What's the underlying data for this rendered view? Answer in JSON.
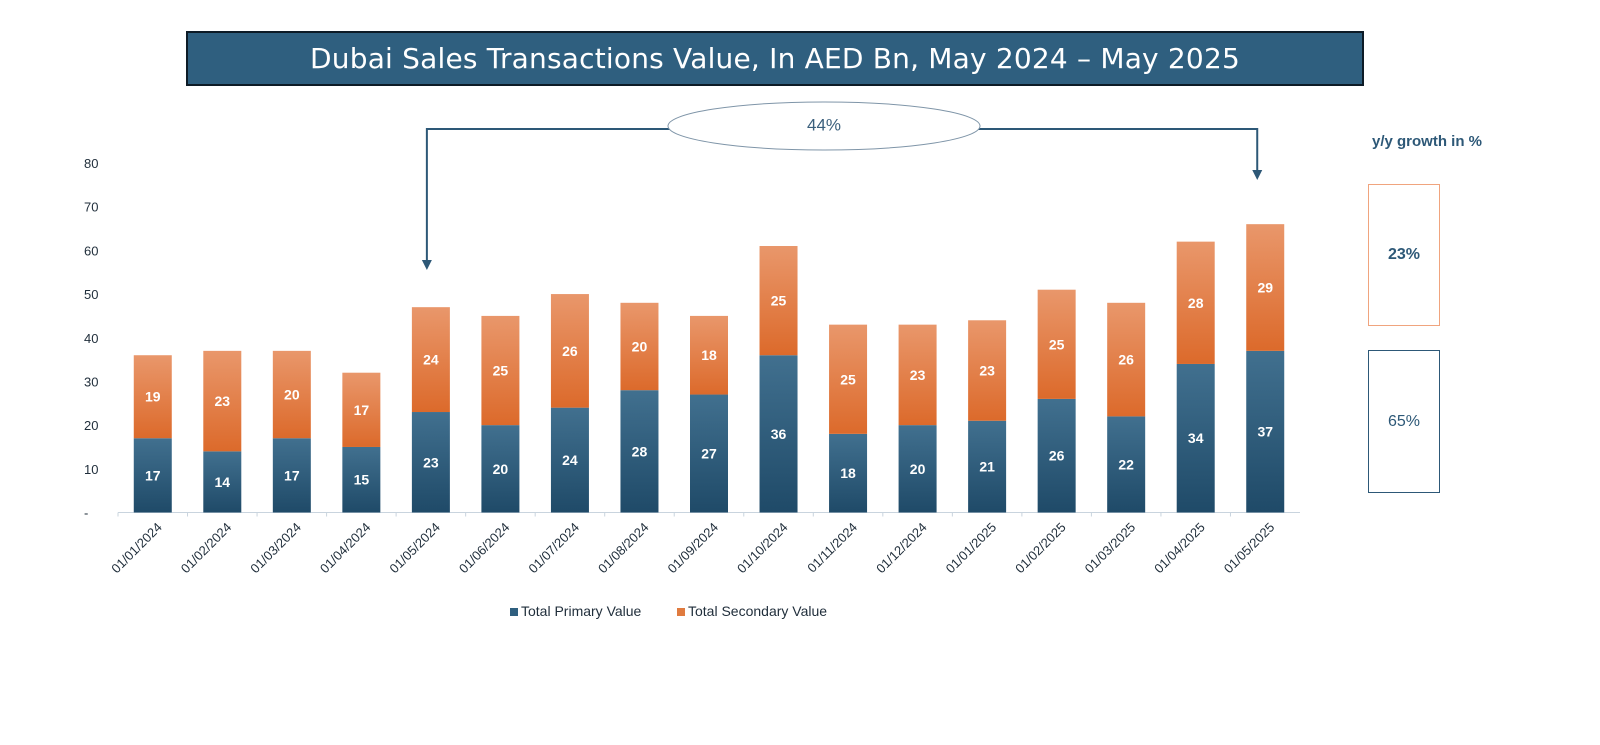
{
  "title": "Dubai Sales Transactions Value, In AED Bn, May 2024 – May 2025",
  "chart_data": {
    "type": "bar",
    "stacked": true,
    "title": "Dubai Sales Transactions Value, In AED Bn, May 2024 – May 2025",
    "categories": [
      "01/01/2024",
      "01/02/2024",
      "01/03/2024",
      "01/04/2024",
      "01/05/2024",
      "01/06/2024",
      "01/07/2024",
      "01/08/2024",
      "01/09/2024",
      "01/10/2024",
      "01/11/2024",
      "01/12/2024",
      "01/01/2025",
      "01/02/2025",
      "01/03/2025",
      "01/04/2025",
      "01/05/2025"
    ],
    "series": [
      {
        "name": "Total Primary Value",
        "color": "#2f5f7f",
        "values": [
          17,
          14,
          17,
          15,
          23,
          20,
          24,
          28,
          27,
          36,
          18,
          20,
          21,
          26,
          22,
          34,
          37
        ]
      },
      {
        "name": "Total Secondary Value",
        "color": "#e07b3f",
        "values": [
          19,
          23,
          20,
          17,
          24,
          25,
          26,
          20,
          18,
          25,
          25,
          23,
          23,
          25,
          26,
          28,
          29
        ]
      }
    ],
    "y_ticks": [
      "-",
      "10",
      "20",
      "30",
      "40",
      "50",
      "60",
      "70",
      "80"
    ],
    "ylim": [
      0,
      80
    ],
    "xlabel": "",
    "ylabel": "",
    "legend_position": "bottom",
    "grid": false,
    "annotation": {
      "text": "44%",
      "from_category": "01/05/2024",
      "to_category": "01/05/2025"
    }
  },
  "growth_panel": {
    "heading": "y/y growth in %",
    "secondary_growth": "23%",
    "primary_growth": "65%"
  }
}
